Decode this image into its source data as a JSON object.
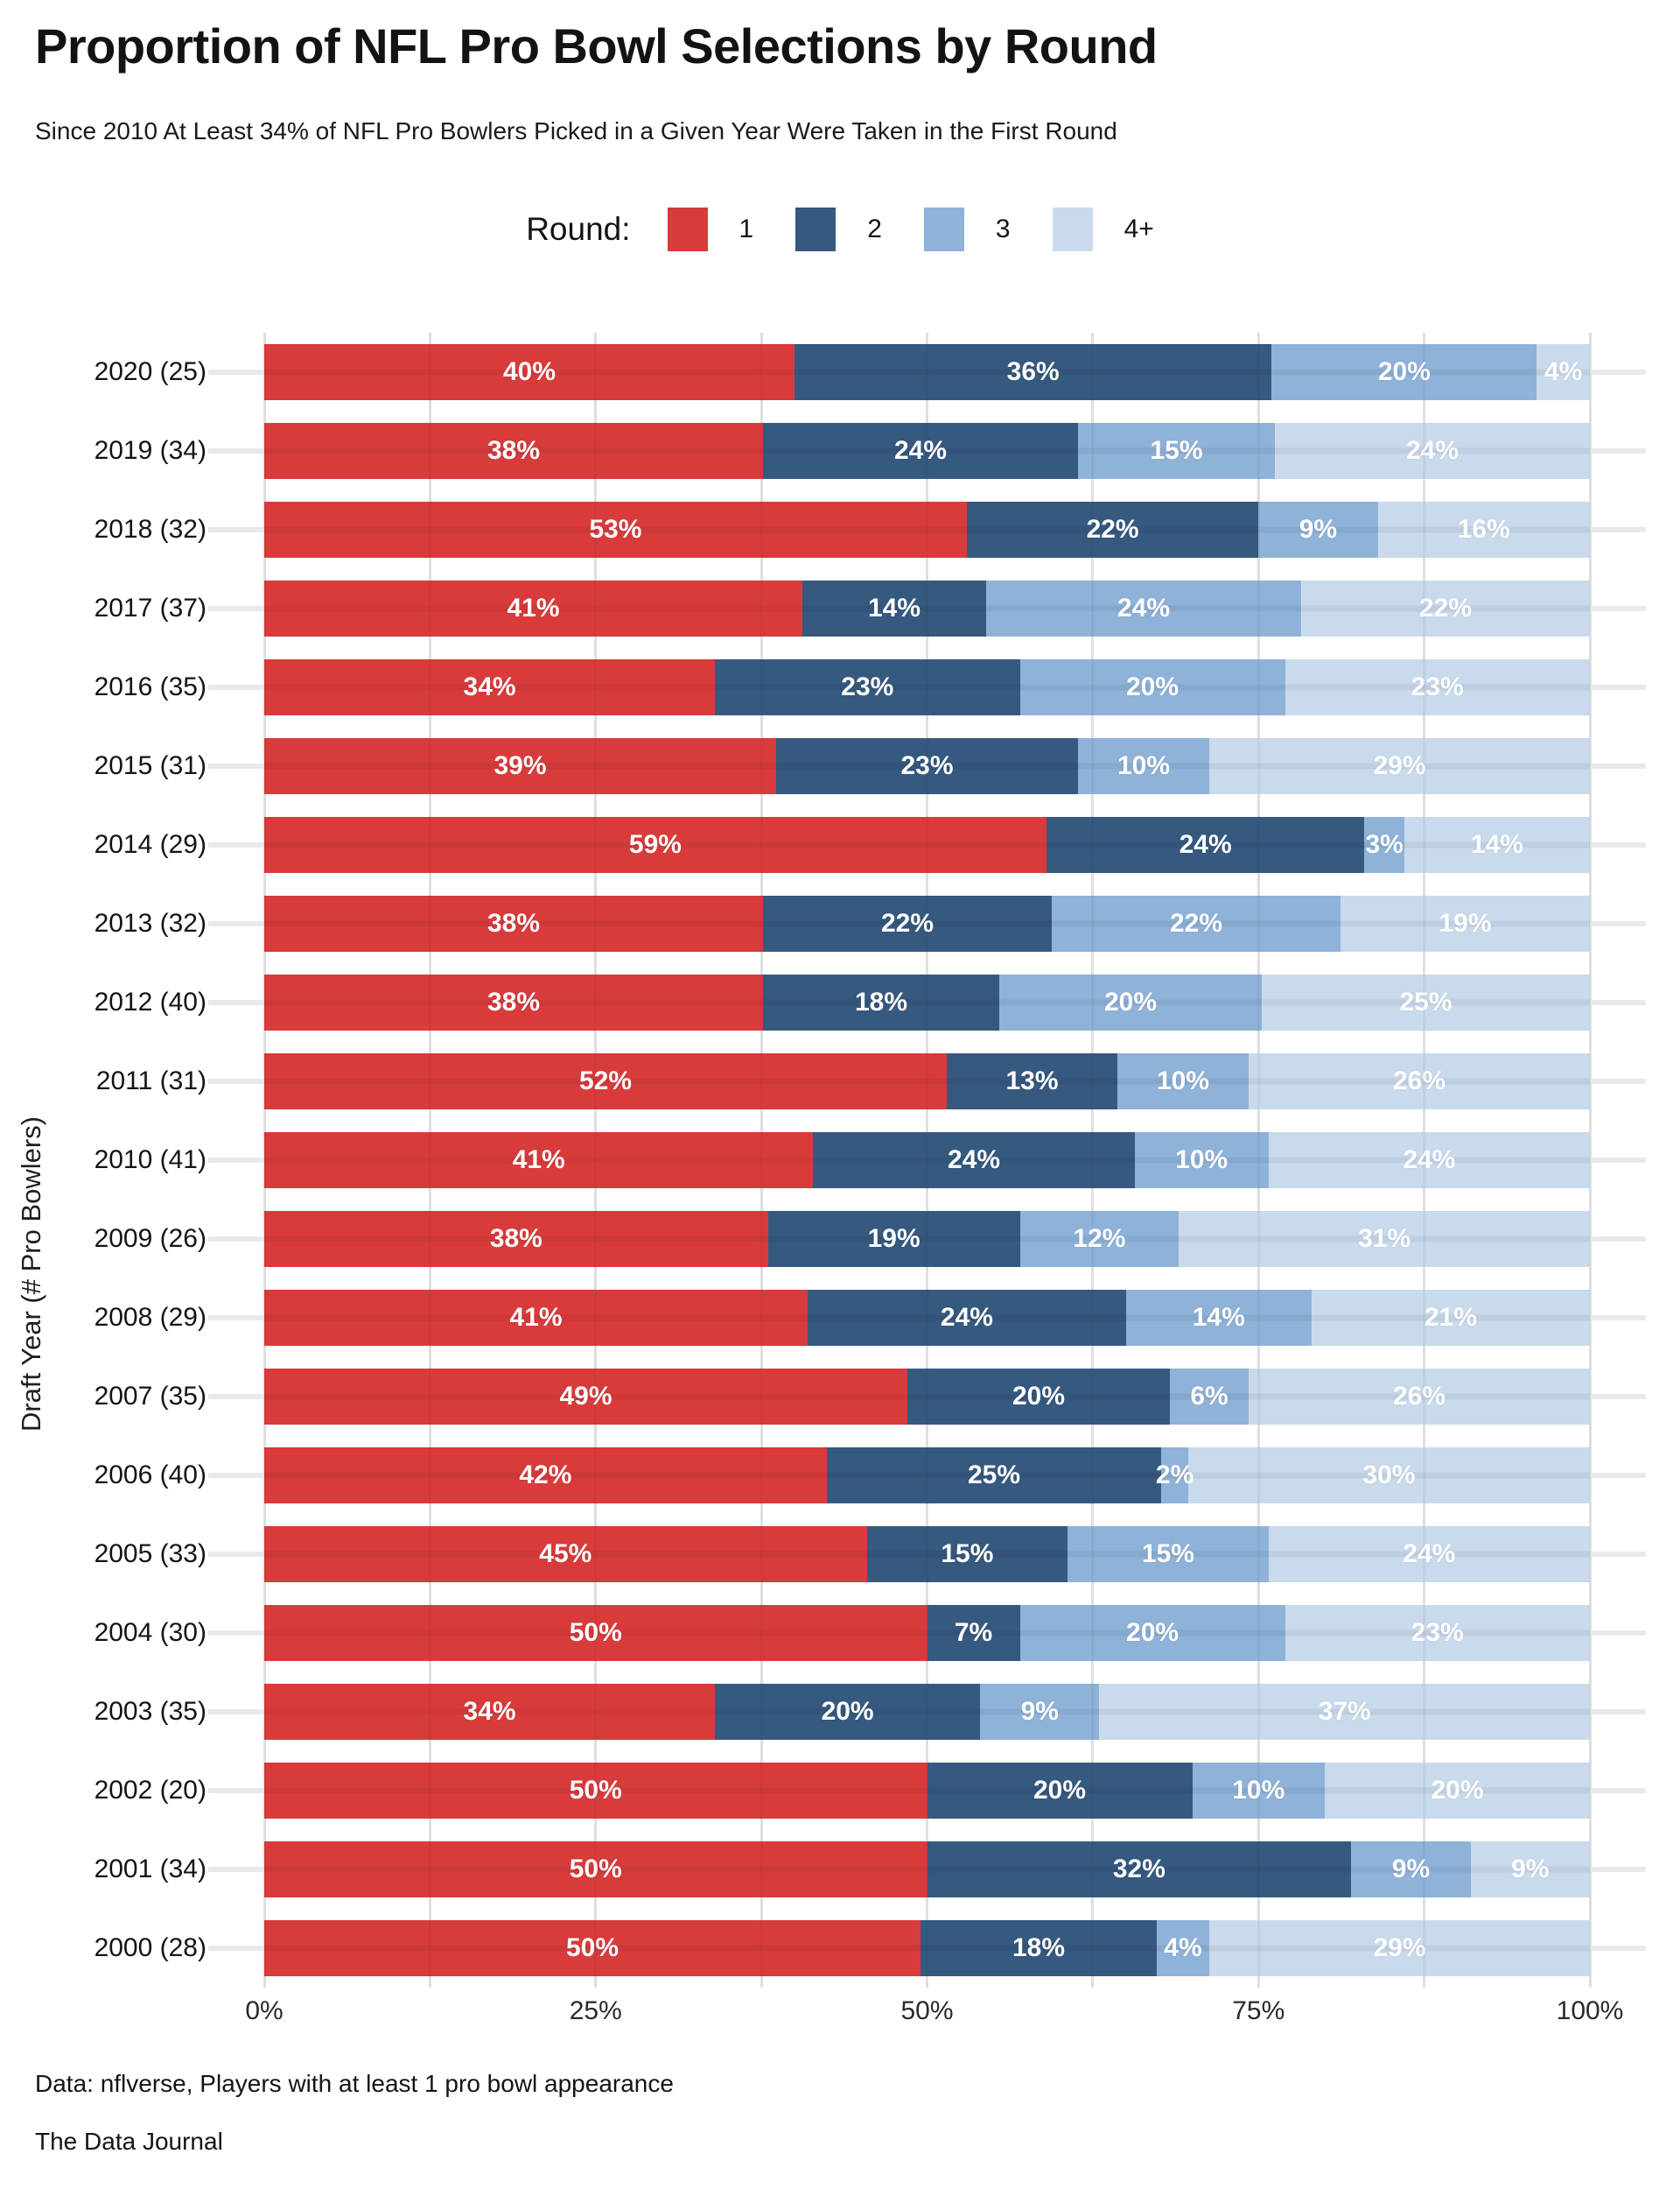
{
  "header": {
    "title": "Proportion of NFL Pro Bowl Selections by Round",
    "subtitle": "Since 2010 At Least 34% of NFL Pro Bowlers Picked in a Given Year Were Taken in the First Round"
  },
  "footer": {
    "source": "Data: nflverse, Players with at least 1 pro bowl appearance",
    "credit": "The Data Journal"
  },
  "chart_data": {
    "type": "bar",
    "orientation": "horizontal",
    "stacked": true,
    "unit": "percent of pro bowlers per draft year",
    "title": "Proportion of NFL Pro Bowl Selections by Round",
    "subtitle": "Since 2010 At Least 34% of NFL Pro Bowlers Picked in a Given Year Were Taken in the First Round",
    "ylabel": "Draft Year (# Pro Bowlers)",
    "x_axis": {
      "ticks": [
        "0%",
        "25%",
        "50%",
        "75%",
        "100%"
      ],
      "tick_positions_pct": [
        0,
        25,
        50,
        75,
        100
      ],
      "range": [
        0,
        100
      ],
      "minor_gridline_step_pct": 12.5,
      "grid": "on"
    },
    "legend": {
      "title": "Round:",
      "position": "top-center",
      "entries": [
        {
          "label": "1",
          "color": "#d93b3b"
        },
        {
          "label": "2",
          "color": "#36597f"
        },
        {
          "label": "3",
          "color": "#8fb2d8"
        },
        {
          "label": "4+",
          "color": "#c9daec"
        }
      ]
    },
    "series_names": [
      "1",
      "2",
      "3",
      "4+"
    ],
    "rows": [
      {
        "year_label": "2020 (25)",
        "values": [
          40,
          36,
          20,
          4
        ],
        "labels": [
          "40%",
          "36%",
          "20%",
          "4%"
        ]
      },
      {
        "year_label": "2019 (34)",
        "values": [
          38,
          24,
          15,
          24
        ],
        "labels": [
          "38%",
          "24%",
          "15%",
          "24%"
        ]
      },
      {
        "year_label": "2018 (32)",
        "values": [
          53,
          22,
          9,
          16
        ],
        "labels": [
          "53%",
          "22%",
          "9%",
          "16%"
        ]
      },
      {
        "year_label": "2017 (37)",
        "values": [
          41,
          14,
          24,
          22
        ],
        "labels": [
          "41%",
          "14%",
          "24%",
          "22%"
        ]
      },
      {
        "year_label": "2016 (35)",
        "values": [
          34,
          23,
          20,
          23
        ],
        "labels": [
          "34%",
          "23%",
          "20%",
          "23%"
        ]
      },
      {
        "year_label": "2015 (31)",
        "values": [
          39,
          23,
          10,
          29
        ],
        "labels": [
          "39%",
          "23%",
          "10%",
          "29%"
        ]
      },
      {
        "year_label": "2014 (29)",
        "values": [
          59,
          24,
          3,
          14
        ],
        "labels": [
          "59%",
          "24%",
          "3%",
          "14%"
        ]
      },
      {
        "year_label": "2013 (32)",
        "values": [
          38,
          22,
          22,
          19
        ],
        "labels": [
          "38%",
          "22%",
          "22%",
          "19%"
        ]
      },
      {
        "year_label": "2012 (40)",
        "values": [
          38,
          18,
          20,
          25
        ],
        "labels": [
          "38%",
          "18%",
          "20%",
          "25%"
        ]
      },
      {
        "year_label": "2011 (31)",
        "values": [
          52,
          13,
          10,
          26
        ],
        "labels": [
          "52%",
          "13%",
          "10%",
          "26%"
        ]
      },
      {
        "year_label": "2010 (41)",
        "values": [
          41,
          24,
          10,
          24
        ],
        "labels": [
          "41%",
          "24%",
          "10%",
          "24%"
        ]
      },
      {
        "year_label": "2009 (26)",
        "values": [
          38,
          19,
          12,
          31
        ],
        "labels": [
          "38%",
          "19%",
          "12%",
          "31%"
        ]
      },
      {
        "year_label": "2008 (29)",
        "values": [
          41,
          24,
          14,
          21
        ],
        "labels": [
          "41%",
          "24%",
          "14%",
          "21%"
        ]
      },
      {
        "year_label": "2007 (35)",
        "values": [
          49,
          20,
          6,
          26
        ],
        "labels": [
          "49%",
          "20%",
          "6%",
          "26%"
        ]
      },
      {
        "year_label": "2006 (40)",
        "values": [
          42,
          25,
          2,
          30
        ],
        "labels": [
          "42%",
          "25%",
          "2%",
          "30%"
        ]
      },
      {
        "year_label": "2005 (33)",
        "values": [
          45,
          15,
          15,
          24
        ],
        "labels": [
          "45%",
          "15%",
          "15%",
          "24%"
        ]
      },
      {
        "year_label": "2004 (30)",
        "values": [
          50,
          7,
          20,
          23
        ],
        "labels": [
          "50%",
          "7%",
          "20%",
          "23%"
        ]
      },
      {
        "year_label": "2003 (35)",
        "values": [
          34,
          20,
          9,
          37
        ],
        "labels": [
          "34%",
          "20%",
          "9%",
          "37%"
        ]
      },
      {
        "year_label": "2002 (20)",
        "values": [
          50,
          20,
          10,
          20
        ],
        "labels": [
          "50%",
          "20%",
          "10%",
          "20%"
        ]
      },
      {
        "year_label": "2001 (34)",
        "values": [
          50,
          32,
          9,
          9
        ],
        "labels": [
          "50%",
          "32%",
          "9%",
          "9%"
        ]
      },
      {
        "year_label": "2000 (28)",
        "values": [
          50,
          18,
          4,
          29
        ],
        "labels": [
          "50%",
          "18%",
          "4%",
          "29%"
        ]
      }
    ]
  }
}
